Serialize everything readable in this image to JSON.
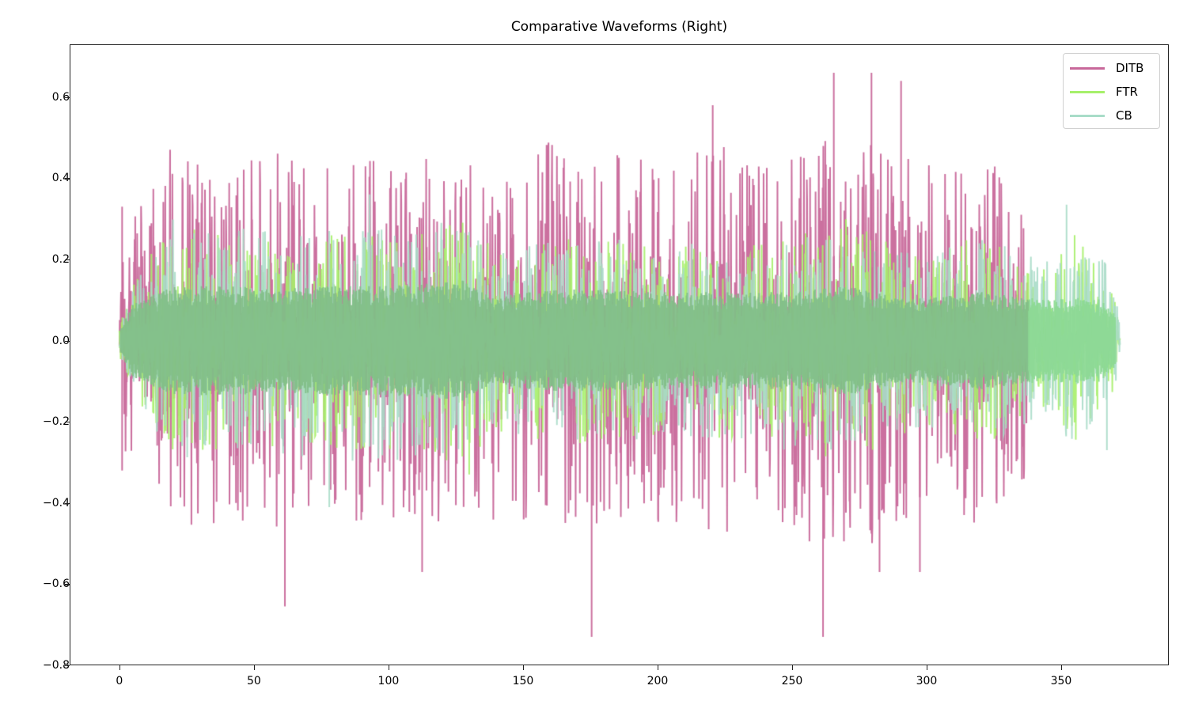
{
  "chart_data": {
    "type": "line",
    "title": "Comparative Waveforms (Right)",
    "xlabel": "",
    "ylabel": "",
    "xlim": [
      -18.5,
      390
    ],
    "ylim": [
      -0.8,
      0.73
    ],
    "xticks": [
      0,
      50,
      100,
      150,
      200,
      250,
      300,
      350
    ],
    "yticks": [
      -0.8,
      -0.6,
      -0.4,
      -0.2,
      0.0,
      0.2,
      0.4,
      0.6
    ],
    "ytick_labels": [
      "−0.8",
      "−0.6",
      "−0.4",
      "−0.2",
      "0.0",
      "0.2",
      "0.4",
      "0.6"
    ],
    "xtick_labels": [
      "0",
      "50",
      "100",
      "150",
      "200",
      "250",
      "300",
      "350"
    ],
    "grid": false,
    "legend_position": "upper right",
    "series": [
      {
        "name": "DITB",
        "color": "#c8689a",
        "alpha": 0.95,
        "x_range": [
          0,
          339
        ],
        "envelope": {
          "x": [
            0,
            2,
            5,
            10,
            20,
            30,
            40,
            50,
            60,
            70,
            80,
            90,
            100,
            110,
            120,
            130,
            140,
            150,
            160,
            170,
            180,
            190,
            200,
            210,
            220,
            230,
            240,
            250,
            260,
            270,
            280,
            290,
            300,
            310,
            320,
            330,
            337,
            339
          ],
          "peak": [
            0.05,
            0.33,
            0.35,
            0.45,
            0.48,
            0.45,
            0.48,
            0.45,
            0.47,
            0.48,
            0.42,
            0.45,
            0.46,
            0.45,
            0.48,
            0.45,
            0.44,
            0.48,
            0.5,
            0.45,
            0.48,
            0.45,
            0.46,
            0.45,
            0.5,
            0.45,
            0.43,
            0.48,
            0.52,
            0.5,
            0.5,
            0.45,
            0.48,
            0.48,
            0.45,
            0.43,
            0.35,
            0.0
          ],
          "rms": [
            0.02,
            0.12,
            0.13,
            0.15,
            0.17,
            0.16,
            0.17,
            0.16,
            0.17,
            0.17,
            0.15,
            0.16,
            0.16,
            0.16,
            0.17,
            0.14,
            0.13,
            0.16,
            0.17,
            0.16,
            0.17,
            0.16,
            0.16,
            0.16,
            0.17,
            0.16,
            0.15,
            0.16,
            0.18,
            0.17,
            0.17,
            0.16,
            0.17,
            0.17,
            0.16,
            0.15,
            0.12,
            0.0
          ]
        },
        "notable_peaks": [
          {
            "x": 220.5,
            "y": 0.58
          },
          {
            "x": 265.5,
            "y": 0.66
          },
          {
            "x": 279.5,
            "y": 0.66
          },
          {
            "x": 290.5,
            "y": 0.64
          },
          {
            "x": 175.5,
            "y": -0.73
          },
          {
            "x": 261.5,
            "y": -0.73
          },
          {
            "x": 61.5,
            "y": -0.655
          },
          {
            "x": 112.5,
            "y": -0.57
          },
          {
            "x": 282.5,
            "y": -0.57
          },
          {
            "x": 297.5,
            "y": -0.57
          },
          {
            "x": 1,
            "y": 0.33
          },
          {
            "x": 1,
            "y": -0.32
          }
        ]
      },
      {
        "name": "FTR",
        "color": "#a6f06a",
        "alpha": 0.9,
        "x_range": [
          0,
          372
        ],
        "envelope": {
          "x": [
            0,
            5,
            10,
            20,
            40,
            60,
            80,
            100,
            120,
            130,
            140,
            150,
            170,
            200,
            230,
            250,
            270,
            290,
            300,
            320,
            338,
            345,
            355,
            365,
            371,
            372
          ],
          "peak": [
            0.04,
            0.15,
            0.2,
            0.28,
            0.27,
            0.26,
            0.27,
            0.27,
            0.3,
            0.32,
            0.22,
            0.24,
            0.26,
            0.24,
            0.24,
            0.25,
            0.32,
            0.23,
            0.22,
            0.26,
            0.2,
            0.18,
            0.25,
            0.2,
            0.1,
            0.0
          ],
          "rms": [
            0.02,
            0.06,
            0.07,
            0.09,
            0.09,
            0.085,
            0.09,
            0.09,
            0.095,
            0.1,
            0.07,
            0.08,
            0.085,
            0.08,
            0.08,
            0.08,
            0.09,
            0.07,
            0.07,
            0.08,
            0.07,
            0.065,
            0.07,
            0.065,
            0.04,
            0.0
          ]
        },
        "notable_peaks": [
          {
            "x": 355,
            "y": 0.26
          },
          {
            "x": 130,
            "y": -0.33
          }
        ]
      },
      {
        "name": "CB",
        "color": "#a8dcc8",
        "alpha": 0.9,
        "x_range": [
          0,
          372
        ],
        "envelope": {
          "x": [
            0,
            5,
            10,
            20,
            40,
            60,
            80,
            100,
            120,
            130,
            140,
            150,
            170,
            200,
            230,
            250,
            270,
            290,
            300,
            320,
            338,
            345,
            355,
            365,
            371,
            372
          ],
          "peak": [
            0.04,
            0.15,
            0.2,
            0.3,
            0.28,
            0.28,
            0.3,
            0.3,
            0.29,
            0.28,
            0.22,
            0.24,
            0.26,
            0.24,
            0.24,
            0.28,
            0.28,
            0.22,
            0.22,
            0.26,
            0.22,
            0.2,
            0.26,
            0.22,
            0.12,
            0.0
          ],
          "rms": [
            0.02,
            0.06,
            0.07,
            0.09,
            0.09,
            0.085,
            0.09,
            0.09,
            0.09,
            0.09,
            0.07,
            0.08,
            0.085,
            0.08,
            0.08,
            0.08,
            0.09,
            0.07,
            0.07,
            0.08,
            0.07,
            0.065,
            0.07,
            0.065,
            0.04,
            0.0
          ]
        },
        "notable_peaks": [
          {
            "x": 93,
            "y": 0.36
          },
          {
            "x": 352,
            "y": 0.335
          },
          {
            "x": 78,
            "y": -0.41
          },
          {
            "x": 367,
            "y": -0.27
          }
        ]
      }
    ]
  },
  "legend": {
    "items": [
      {
        "label": "DITB",
        "color": "#c8689a"
      },
      {
        "label": "FTR",
        "color": "#a6f06a"
      },
      {
        "label": "CB",
        "color": "#a8dcc8"
      }
    ]
  },
  "overlap_color": "#82bf88"
}
